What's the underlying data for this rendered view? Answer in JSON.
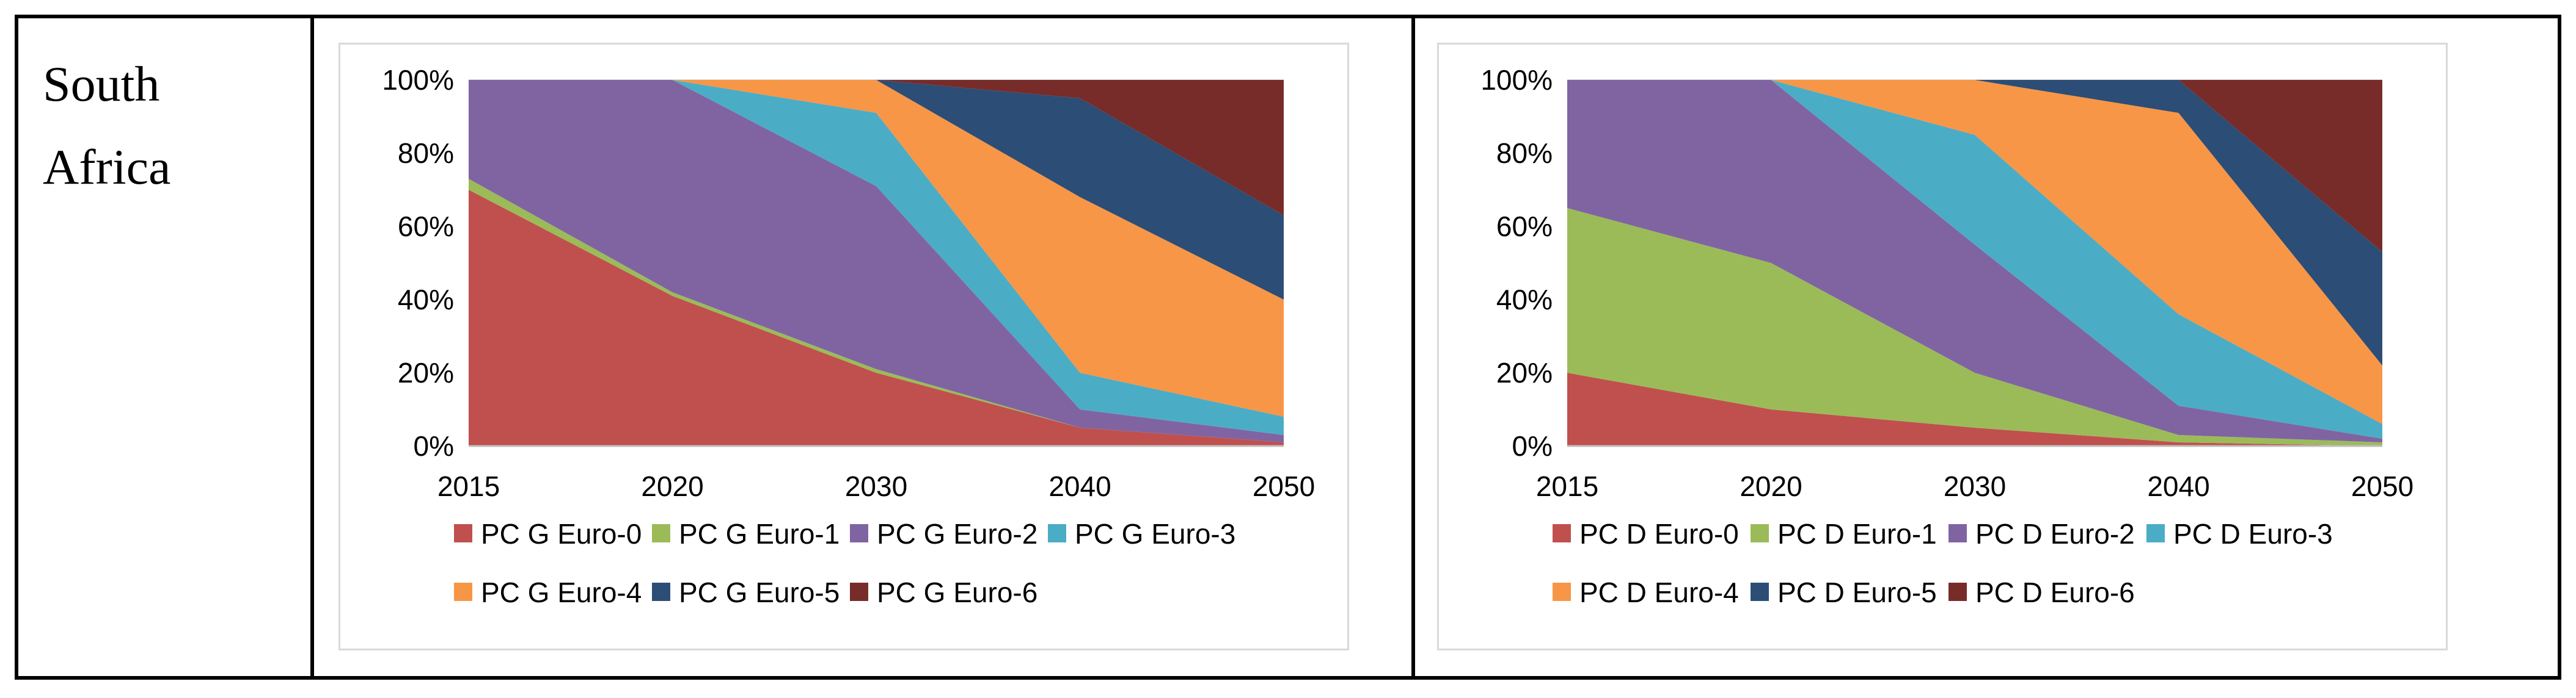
{
  "row_label": [
    "South",
    "Africa"
  ],
  "chart_data": [
    {
      "type": "area",
      "stacking": "percent",
      "categories": [
        "2015",
        "2020",
        "2030",
        "2040",
        "2050"
      ],
      "y_ticks": [
        "0%",
        "20%",
        "40%",
        "60%",
        "80%",
        "100%"
      ],
      "ylim": [
        0,
        100
      ],
      "series": [
        {
          "name": "PC G Euro-0",
          "color": "#c0504d",
          "values": [
            70,
            41,
            20,
            5,
            1
          ]
        },
        {
          "name": "PC G Euro-1",
          "color": "#9bbb59",
          "values": [
            3,
            1,
            1,
            0,
            0
          ]
        },
        {
          "name": "PC G Euro-2",
          "color": "#8064a2",
          "values": [
            27,
            58,
            50,
            5,
            2
          ]
        },
        {
          "name": "PC G Euro-3",
          "color": "#4bacc6",
          "values": [
            0,
            0,
            20,
            10,
            5
          ]
        },
        {
          "name": "PC G Euro-4",
          "color": "#f79646",
          "values": [
            0,
            0,
            9,
            48,
            32
          ]
        },
        {
          "name": "PC G Euro-5",
          "color": "#2c4d75",
          "values": [
            0,
            0,
            0,
            27,
            23
          ]
        },
        {
          "name": "PC G Euro-6",
          "color": "#772c2a",
          "values": [
            0,
            0,
            0,
            5,
            37
          ]
        }
      ]
    },
    {
      "type": "area",
      "stacking": "percent",
      "categories": [
        "2015",
        "2020",
        "2030",
        "2040",
        "2050"
      ],
      "y_ticks": [
        "0%",
        "20%",
        "40%",
        "60%",
        "80%",
        "100%"
      ],
      "ylim": [
        0,
        100
      ],
      "series": [
        {
          "name": "PC D Euro-0",
          "color": "#c0504d",
          "values": [
            20,
            10,
            5,
            1,
            0
          ]
        },
        {
          "name": "PC D Euro-1",
          "color": "#9bbb59",
          "values": [
            45,
            40,
            15,
            2,
            1
          ]
        },
        {
          "name": "PC D Euro-2",
          "color": "#8064a2",
          "values": [
            35,
            50,
            35,
            8,
            1
          ]
        },
        {
          "name": "PC D Euro-3",
          "color": "#4bacc6",
          "values": [
            0,
            0,
            30,
            25,
            4
          ]
        },
        {
          "name": "PC D Euro-4",
          "color": "#f79646",
          "values": [
            0,
            0,
            15,
            55,
            16
          ]
        },
        {
          "name": "PC D Euro-5",
          "color": "#2c4d75",
          "values": [
            0,
            0,
            0,
            9,
            31
          ]
        },
        {
          "name": "PC D Euro-6",
          "color": "#772c2a",
          "values": [
            0,
            0,
            0,
            0,
            47
          ]
        }
      ]
    }
  ]
}
